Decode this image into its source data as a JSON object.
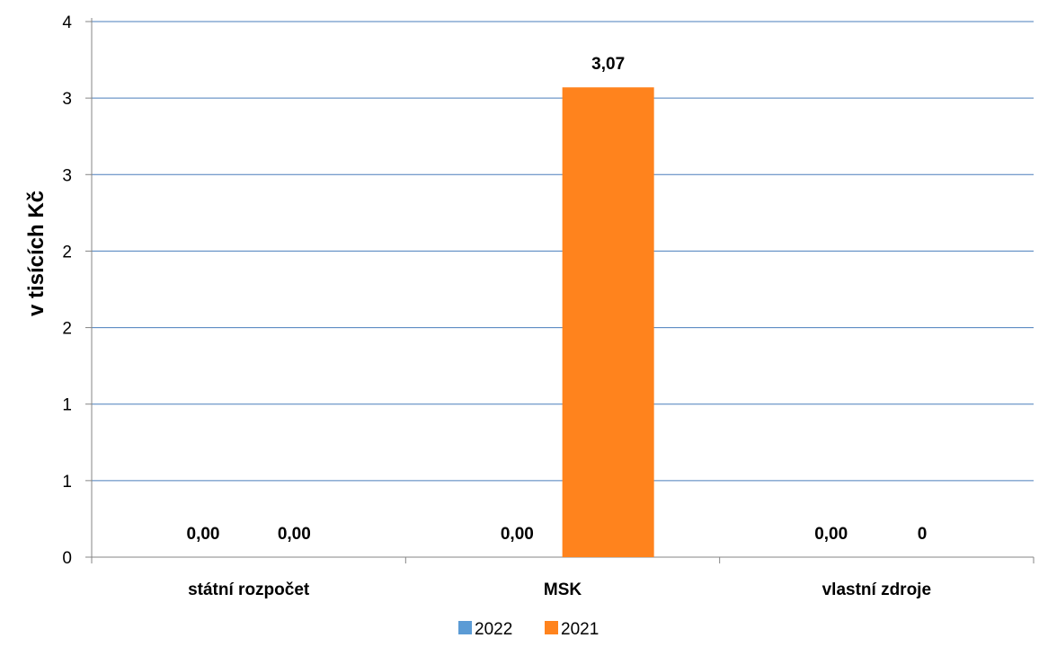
{
  "chart_data": {
    "type": "bar",
    "ylabel": "v tisících Kč",
    "xlabel": "",
    "ylim": [
      0,
      3.5
    ],
    "y_tick_step": 0.5,
    "y_tick_labels": [
      "0",
      "1",
      "1",
      "2",
      "2",
      "3",
      "3",
      "4"
    ],
    "grid": true,
    "legend_position": "bottom",
    "categories": [
      "státní rozpočet",
      "MSK",
      "vlastní zdroje"
    ],
    "series": [
      {
        "name": "2022",
        "color": "#5B9BD5",
        "values": [
          0,
          0,
          0
        ],
        "data_labels": [
          "0,00",
          "0,00",
          "0,00"
        ]
      },
      {
        "name": "2021",
        "color": "#FF831D",
        "values": [
          0,
          3.07,
          0
        ],
        "data_labels": [
          "0,00",
          "3,07",
          "0"
        ]
      }
    ],
    "gridline_color": "#4A7EBB",
    "axis_color": "#868686"
  }
}
